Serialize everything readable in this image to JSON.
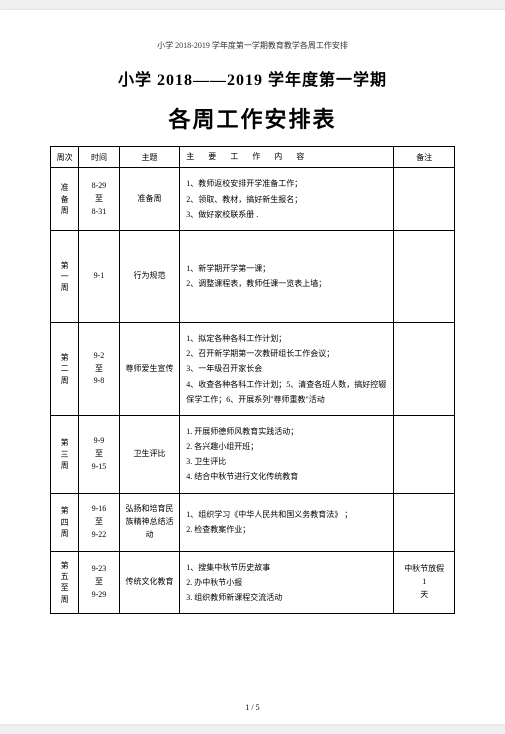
{
  "header": "小学 2018-2019 学年度第一学期教育教学各周工作安排",
  "title1": "小学 2018——2019 学年度第一学期",
  "title2": "各周工作安排表",
  "columns": {
    "week": "周次",
    "time": "时间",
    "theme": "主题",
    "content": "主 要 工 作 内 容",
    "note": "备注"
  },
  "rows": [
    {
      "week": "准备周",
      "time": "8-29 至 8-31",
      "theme": "准备周",
      "content": "1、教师返校安排开学准备工作；\n2、领取、教材，搞好新生报名；\n3、做好家校联系册 .",
      "note": "",
      "height": 52
    },
    {
      "week": "第一周",
      "time": "9-1",
      "theme": "行为规范",
      "content": "1、新学期开学第一课；\n2、调整课程表，教师任课一览表上墙；",
      "note": "",
      "height": 92
    },
    {
      "week": "第二周",
      "time": "9-2 至 9-8",
      "theme": "尊师爱生宣传",
      "content": "1、拟定各种各科工作计划；\n2、召开新学期第一次教研组长工作会议；\n3、一年级召开家长会\n4、收查各种各科工作计划；5、清查各班人数，搞好控辍保学工作；6、开展系列\"尊师重教\"活动",
      "note": "",
      "height": 92
    },
    {
      "week": "第三周",
      "time": "9-9 至 9-15",
      "theme": "卫生评比",
      "content": "1. 开展师德师风教育实践活动；\n2. 各兴趣小组开班；\n3. 卫生评比\n4. 结合中秋节进行文化传统教育",
      "note": "",
      "height": 70
    },
    {
      "week": "第四周",
      "time": "9-16 至 9-22",
      "theme": "弘扬和培育民族精神总结活动",
      "content": "1、组织学习《中华人民共和国义务教育法》 ；\n2. 检查教案作业；",
      "note": "",
      "height": 58
    },
    {
      "week": "第五至周",
      "time": "9-23 至 9-29",
      "theme": "传统文化教育",
      "content": "1、搜集中秋节历史故事\n2. 办中秋节小报\n3. 组织教师新课程交流活动",
      "note": "中秋节放假 1 天",
      "height": 52
    }
  ],
  "pageNum": "1 / 5"
}
